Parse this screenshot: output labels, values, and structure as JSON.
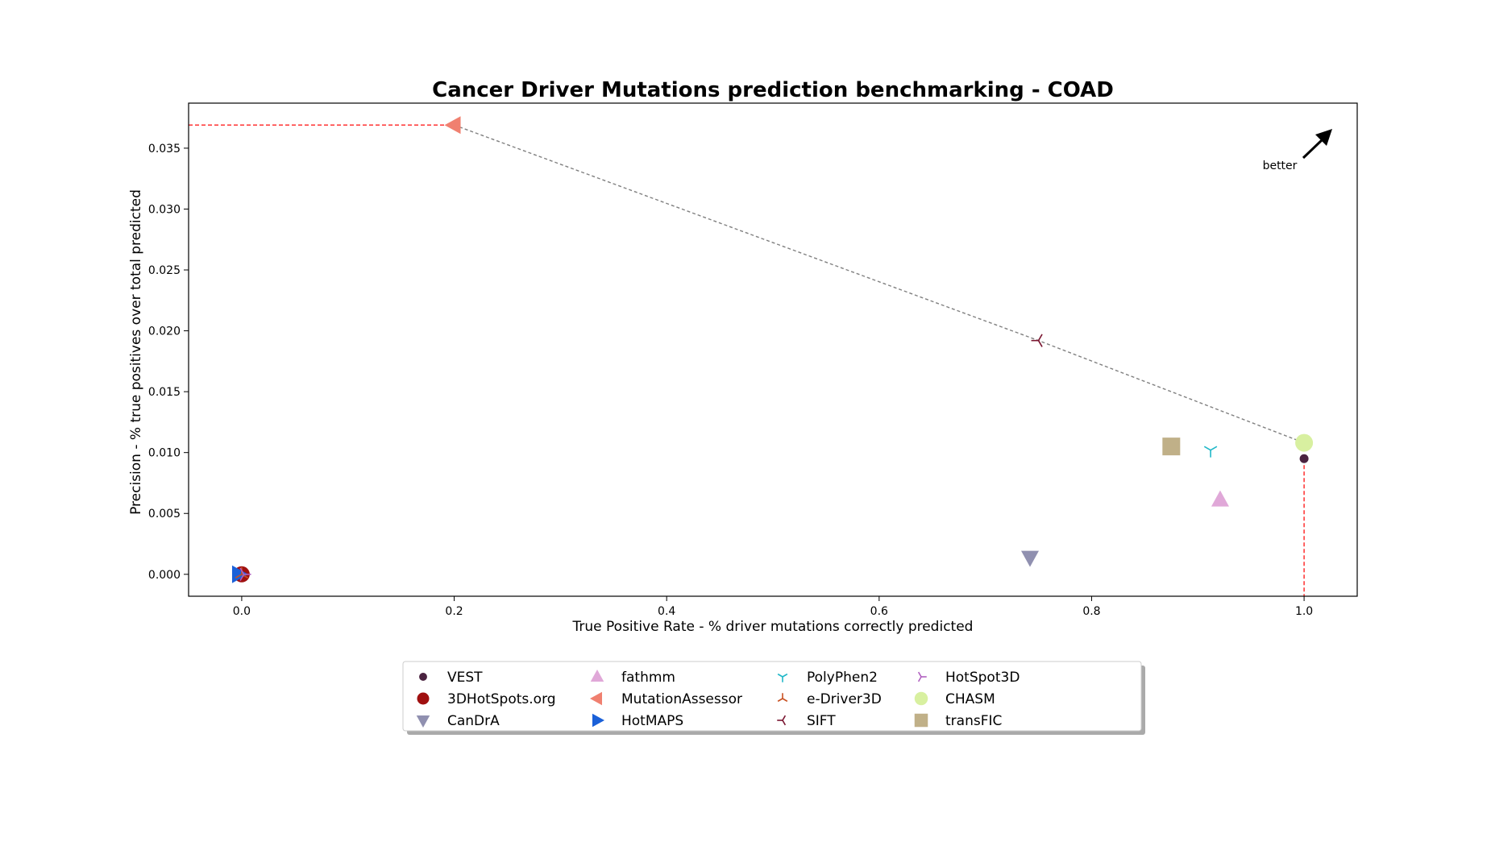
{
  "chart_data": {
    "type": "scatter",
    "title": "Cancer Driver Mutations prediction benchmarking - COAD",
    "xlabel": "True Positive Rate - % driver mutations correctly predicted",
    "ylabel": "Precision - % true positives over total predicted",
    "xlim": [
      -0.05,
      1.05
    ],
    "ylim": [
      -0.0018,
      0.0387
    ],
    "xticks": [
      0.0,
      0.2,
      0.4,
      0.6,
      0.8,
      1.0
    ],
    "xtick_labels": [
      "0.0",
      "0.2",
      "0.4",
      "0.6",
      "0.8",
      "1.0"
    ],
    "yticks": [
      0.0,
      0.005,
      0.01,
      0.015,
      0.02,
      0.025,
      0.03,
      0.035
    ],
    "ytick_labels": [
      "0.000",
      "0.005",
      "0.010",
      "0.015",
      "0.020",
      "0.025",
      "0.030",
      "0.035"
    ],
    "grid": false,
    "legend_position": "bottom-center",
    "annotation": "better",
    "series": [
      {
        "name": "VEST",
        "x": 1.0,
        "y": 0.0095,
        "marker": "circle-small",
        "color": "#4a2340"
      },
      {
        "name": "3DHotSpots.org",
        "x": 0.0,
        "y": 0.0,
        "marker": "circle",
        "color": "#a01010"
      },
      {
        "name": "CanDrA",
        "x": 0.742,
        "y": 0.0014,
        "marker": "triangle-down",
        "color": "#9090b0"
      },
      {
        "name": "fathmm",
        "x": 0.921,
        "y": 0.0061,
        "marker": "triangle-up",
        "color": "#e0a8d8"
      },
      {
        "name": "MutationAssessor",
        "x": 0.2,
        "y": 0.0369,
        "marker": "triangle-left",
        "color": "#f08070"
      },
      {
        "name": "HotMAPS",
        "x": -0.003,
        "y": 0.0,
        "marker": "triangle-right",
        "color": "#1a60d8"
      },
      {
        "name": "PolyPhen2",
        "x": 0.912,
        "y": 0.0102,
        "marker": "tri-down",
        "color": "#20b8c8"
      },
      {
        "name": "e-Driver3D",
        "x": 0.0,
        "y": 0.0,
        "marker": "tri-up",
        "color": "#c85020"
      },
      {
        "name": "SIFT",
        "x": 0.75,
        "y": 0.0192,
        "marker": "tri-left",
        "color": "#7a1530"
      },
      {
        "name": "HotSpot3D",
        "x": 0.002,
        "y": 0.0,
        "marker": "tri-right",
        "color": "#b060c0"
      },
      {
        "name": "CHASM",
        "x": 1.0,
        "y": 0.0108,
        "marker": "circle-large",
        "color": "#d8f0a0"
      },
      {
        "name": "transFIC",
        "x": 0.875,
        "y": 0.0105,
        "marker": "square",
        "color": "#c0b088"
      }
    ],
    "pareto_front": [
      [
        0.2,
        0.0369
      ],
      [
        0.75,
        0.0192
      ],
      [
        1.0,
        0.0108
      ]
    ],
    "pareto_guides": [
      [
        -0.05,
        0.0369,
        0.2,
        0.0369
      ],
      [
        1.0,
        0.0095,
        1.0,
        -0.0018
      ]
    ],
    "colors": {
      "pareto_line": "#808080",
      "guide_line": "#ff2020",
      "arrow": "#000000"
    }
  },
  "legend_order": [
    "VEST",
    "3DHotSpots.org",
    "CanDrA",
    "fathmm",
    "MutationAssessor",
    "HotMAPS",
    "PolyPhen2",
    "e-Driver3D",
    "SIFT",
    "HotSpot3D",
    "CHASM",
    "transFIC"
  ]
}
